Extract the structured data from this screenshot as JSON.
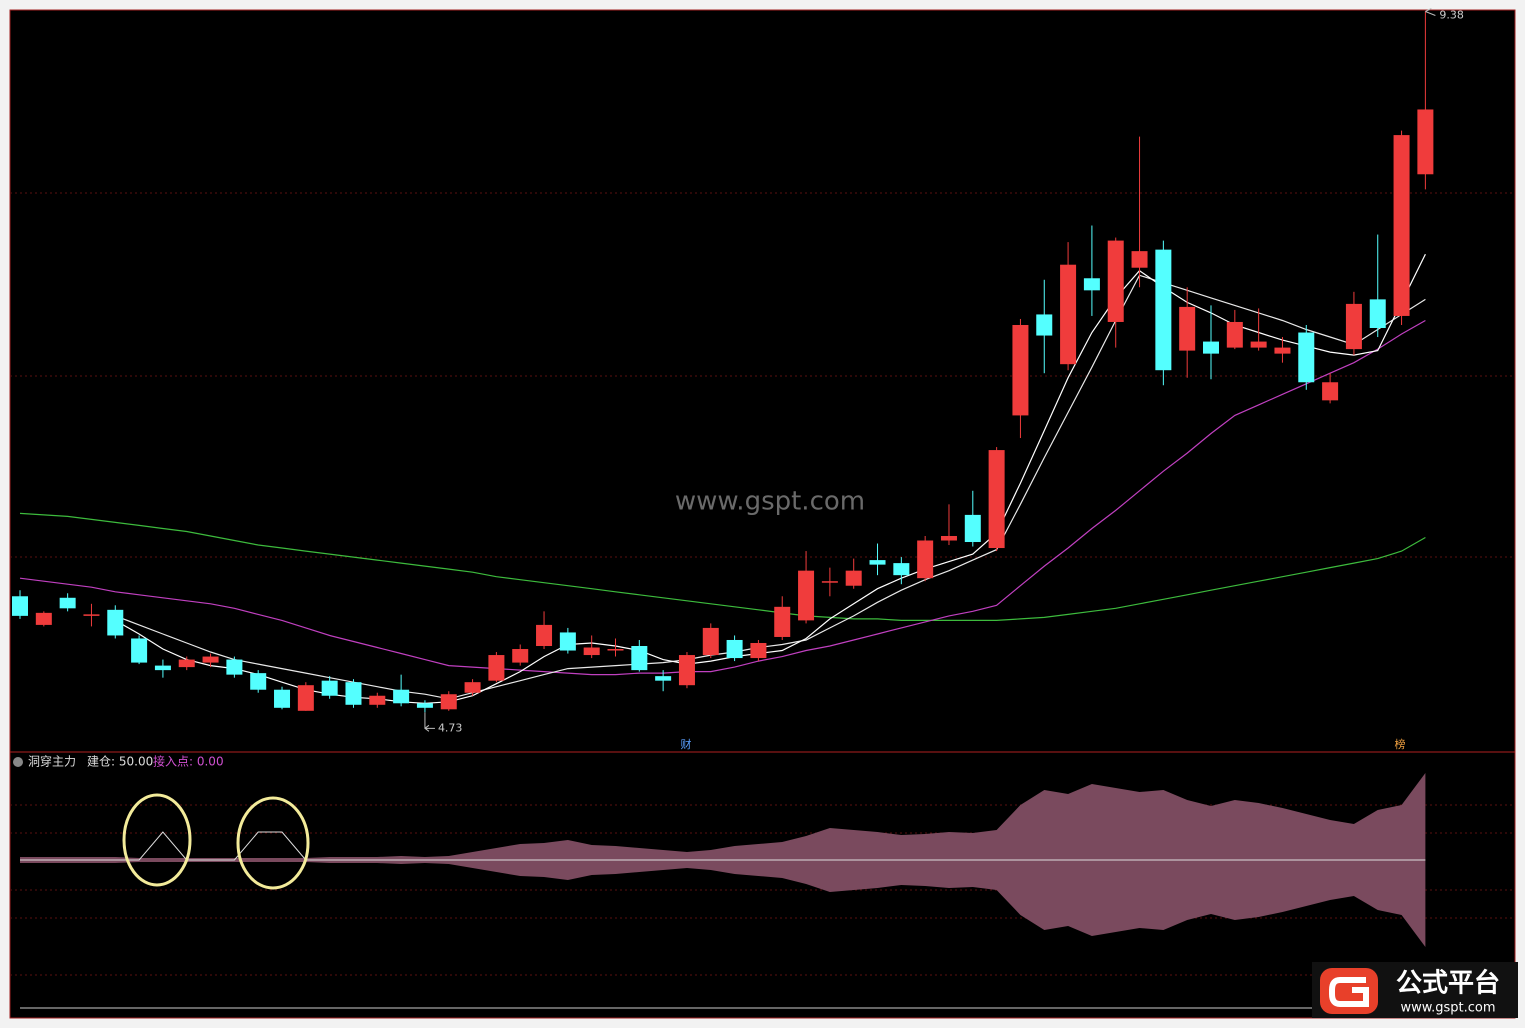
{
  "chart_data": [
    {
      "type": "candlestick",
      "ylim": [
        4.48,
        9.39
      ],
      "up_color": "#f03c3c",
      "down_color": "#54ffff",
      "open": [
        5.5,
        5.31,
        5.49,
        5.37,
        5.41,
        5.22,
        5.04,
        5.03,
        5.06,
        5.08,
        4.99,
        4.88,
        4.74,
        4.94,
        4.93,
        4.78,
        4.88,
        4.79,
        4.75,
        4.86,
        4.94,
        5.06,
        5.17,
        5.26,
        5.11,
        5.14,
        5.17,
        4.97,
        4.91,
        5.11,
        5.21,
        5.09,
        5.23,
        5.34,
        5.59,
        5.57,
        5.74,
        5.72,
        5.62,
        5.87,
        6.04,
        5.82,
        6.7,
        7.37,
        7.04,
        7.61,
        7.32,
        7.68,
        7.8,
        7.13,
        7.19,
        7.15,
        7.15,
        7.11,
        7.25,
        6.8,
        7.14,
        7.47,
        7.36,
        8.3
      ],
      "close": [
        5.37,
        5.39,
        5.42,
        5.38,
        5.24,
        5.06,
        5.01,
        5.08,
        5.1,
        4.98,
        4.88,
        4.76,
        4.91,
        4.84,
        4.78,
        4.84,
        4.79,
        4.76,
        4.85,
        4.93,
        5.11,
        5.15,
        5.31,
        5.14,
        5.16,
        5.15,
        5.01,
        4.94,
        5.11,
        5.29,
        5.09,
        5.19,
        5.43,
        5.67,
        5.6,
        5.67,
        5.71,
        5.64,
        5.87,
        5.9,
        5.86,
        6.47,
        7.3,
        7.23,
        7.7,
        7.53,
        7.86,
        7.79,
        7.0,
        7.42,
        7.11,
        7.32,
        7.19,
        7.15,
        6.92,
        6.92,
        7.44,
        7.28,
        8.56,
        8.73
      ],
      "high": [
        5.54,
        5.4,
        5.52,
        5.45,
        5.44,
        5.24,
        5.08,
        5.1,
        5.12,
        5.1,
        5.01,
        4.9,
        4.93,
        4.97,
        4.95,
        4.86,
        4.98,
        4.81,
        4.87,
        4.95,
        5.13,
        5.18,
        5.4,
        5.29,
        5.24,
        5.22,
        5.21,
        5.01,
        5.13,
        5.32,
        5.24,
        5.21,
        5.5,
        5.8,
        5.69,
        5.75,
        5.85,
        5.76,
        5.9,
        6.11,
        6.2,
        6.49,
        7.34,
        7.6,
        7.85,
        7.96,
        7.88,
        8.55,
        7.86,
        7.55,
        7.43,
        7.4,
        7.41,
        7.22,
        7.3,
        6.98,
        7.52,
        7.9,
        8.59,
        9.38
      ],
      "low": [
        5.35,
        5.3,
        5.4,
        5.3,
        5.22,
        5.05,
        4.96,
        5.01,
        5.03,
        4.96,
        4.86,
        4.75,
        4.74,
        4.82,
        4.76,
        4.76,
        4.77,
        4.73,
        4.74,
        4.84,
        4.93,
        5.04,
        5.15,
        5.12,
        5.09,
        5.1,
        5.0,
        4.87,
        4.89,
        5.09,
        5.07,
        5.07,
        5.21,
        5.32,
        5.5,
        5.55,
        5.64,
        5.58,
        5.6,
        5.84,
        5.83,
        5.8,
        6.55,
        6.98,
        7.0,
        7.36,
        7.15,
        7.55,
        6.9,
        6.95,
        6.94,
        7.14,
        7.13,
        7.05,
        6.87,
        6.78,
        7.1,
        7.22,
        7.3,
        8.2
      ],
      "lines": [
        {
          "color": "#3dbb3d",
          "values": [
            6.05,
            6.04,
            6.03,
            6.01,
            5.99,
            5.97,
            5.95,
            5.93,
            5.9,
            5.87,
            5.84,
            5.82,
            5.8,
            5.78,
            5.76,
            5.74,
            5.72,
            5.7,
            5.68,
            5.66,
            5.63,
            5.61,
            5.59,
            5.57,
            5.55,
            5.53,
            5.51,
            5.49,
            5.47,
            5.45,
            5.43,
            5.41,
            5.39,
            5.37,
            5.36,
            5.35,
            5.35,
            5.34,
            5.34,
            5.34,
            5.34,
            5.34,
            5.35,
            5.36,
            5.38,
            5.4,
            5.42,
            5.45,
            5.48,
            5.51,
            5.54,
            5.57,
            5.6,
            5.63,
            5.66,
            5.69,
            5.72,
            5.75,
            5.8,
            5.89
          ]
        },
        {
          "color": "#c040c0",
          "values": [
            5.62,
            5.6,
            5.58,
            5.56,
            5.53,
            5.51,
            5.49,
            5.47,
            5.45,
            5.42,
            5.38,
            5.34,
            5.29,
            5.24,
            5.2,
            5.16,
            5.12,
            5.08,
            5.04,
            5.03,
            5.02,
            5.01,
            5.0,
            4.99,
            4.98,
            4.98,
            4.99,
            4.99,
            5.0,
            5.0,
            5.03,
            5.07,
            5.1,
            5.14,
            5.17,
            5.21,
            5.25,
            5.29,
            5.33,
            5.37,
            5.4,
            5.44,
            5.57,
            5.7,
            5.82,
            5.95,
            6.07,
            6.2,
            6.33,
            6.45,
            6.58,
            6.7,
            6.77,
            6.84,
            6.91,
            6.98,
            7.05,
            7.14,
            7.24,
            7.33
          ]
        },
        {
          "color": "#e8e8e8",
          "values": [
            null,
            null,
            null,
            null,
            5.37,
            5.31,
            5.25,
            5.19,
            5.13,
            5.08,
            5.05,
            5.02,
            4.99,
            4.96,
            4.93,
            4.9,
            4.87,
            4.85,
            4.82,
            4.86,
            4.9,
            4.94,
            4.98,
            5.02,
            5.03,
            5.04,
            5.05,
            5.06,
            5.08,
            5.11,
            5.13,
            5.16,
            5.18,
            5.21,
            5.29,
            5.37,
            5.46,
            5.54,
            5.61,
            5.67,
            5.74,
            5.81,
            6.11,
            6.42,
            6.72,
            7.02,
            7.33,
            7.63,
            7.58,
            7.53,
            7.48,
            7.43,
            7.38,
            7.33,
            7.27,
            7.22,
            7.17,
            7.27,
            7.37,
            7.47
          ]
        },
        {
          "color": "#ffffff",
          "values": [
            null,
            null,
            null,
            null,
            5.34,
            5.25,
            5.15,
            5.08,
            5.04,
            5.02,
            4.98,
            4.93,
            4.88,
            4.85,
            4.83,
            4.82,
            4.8,
            4.79,
            4.8,
            4.84,
            4.92,
            5.0,
            5.1,
            5.18,
            5.19,
            5.17,
            5.14,
            5.08,
            5.05,
            5.07,
            5.1,
            5.12,
            5.14,
            5.22,
            5.35,
            5.45,
            5.55,
            5.62,
            5.68,
            5.73,
            5.78,
            5.92,
            6.25,
            6.6,
            6.95,
            7.25,
            7.48,
            7.66,
            7.55,
            7.45,
            7.38,
            7.3,
            7.25,
            7.2,
            7.16,
            7.12,
            7.1,
            7.13,
            7.45,
            7.77
          ]
        }
      ],
      "markers": [
        "财",
        "榜"
      ],
      "watermark": "www.gspt.com"
    },
    {
      "type": "band",
      "title": "洞穿主力",
      "legend_items": [
        "建仓: 50.00",
        "接入点: 0.00"
      ],
      "ylim": [
        -100,
        100
      ],
      "band": {
        "color": "#7a4a5e",
        "values": [
          3,
          3,
          3,
          3,
          3,
          2,
          2,
          2,
          2,
          2,
          2,
          2,
          2,
          3,
          3,
          3,
          4,
          3,
          4,
          8,
          12,
          16,
          17,
          20,
          15,
          14,
          12,
          10,
          8,
          10,
          14,
          16,
          18,
          24,
          32,
          30,
          28,
          25,
          26,
          28,
          27,
          30,
          55,
          70,
          66,
          76,
          72,
          68,
          70,
          60,
          54,
          60,
          57,
          52,
          46,
          40,
          36,
          50,
          55,
          87
        ]
      },
      "line": {
        "color": "#dddddd",
        "values": [
          0,
          0,
          0,
          0,
          0,
          0,
          28,
          0,
          0,
          0,
          28,
          28,
          0,
          0,
          0,
          0,
          0,
          0,
          0,
          0,
          0,
          0,
          0,
          0,
          0,
          0,
          0,
          0,
          0,
          0,
          0,
          0,
          0,
          0,
          0,
          0,
          0,
          0,
          0,
          0,
          0,
          0,
          0,
          0,
          0,
          0,
          0,
          0,
          0,
          0,
          0,
          0,
          0,
          0,
          0,
          0,
          0,
          0,
          0,
          0
        ]
      }
    }
  ],
  "logo": {
    "name": "公式平台",
    "url": "www.gspt.com"
  }
}
